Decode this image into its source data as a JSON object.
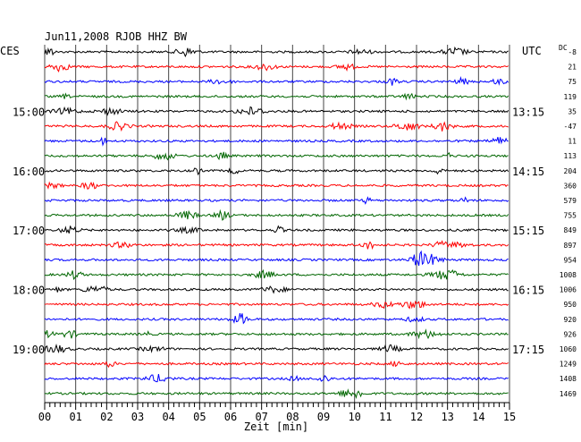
{
  "chart_data": {
    "type": "line",
    "title": "Jun11,2008   RJOB HHZ BW",
    "left_axis_label": "CES",
    "right_axis_label": "UTC",
    "offset_header": "DC",
    "xlabel": "Zeit [min]",
    "x_ticks": [
      "00",
      "01",
      "02",
      "03",
      "04",
      "05",
      "06",
      "07",
      "08",
      "09",
      "10",
      "11",
      "12",
      "13",
      "14",
      "15"
    ],
    "xlim": [
      0,
      15
    ],
    "grid": true,
    "trace_colors": [
      "#000000",
      "#ff0000",
      "#0000ff",
      "#006600"
    ],
    "left_hour_labels": [
      {
        "trace": 4,
        "label": "15:00"
      },
      {
        "trace": 8,
        "label": "16:00"
      },
      {
        "trace": 12,
        "label": "17:00"
      },
      {
        "trace": 16,
        "label": "18:00"
      },
      {
        "trace": 20,
        "label": "19:00"
      }
    ],
    "right_hour_labels": [
      {
        "trace": 4,
        "label": "13:15"
      },
      {
        "trace": 8,
        "label": "14:15"
      },
      {
        "trace": 12,
        "label": "15:15"
      },
      {
        "trace": 16,
        "label": "16:15"
      },
      {
        "trace": 20,
        "label": "17:15"
      }
    ],
    "dc_offsets": [
      "-8",
      "21",
      "75",
      "119",
      "35",
      "-47",
      "11",
      "113",
      "204",
      "360",
      "579",
      "755",
      "849",
      "897",
      "954",
      "1008",
      "1006",
      "950",
      "920",
      "926",
      "1060",
      "1249",
      "1408",
      "1469"
    ],
    "traces": 24
  }
}
